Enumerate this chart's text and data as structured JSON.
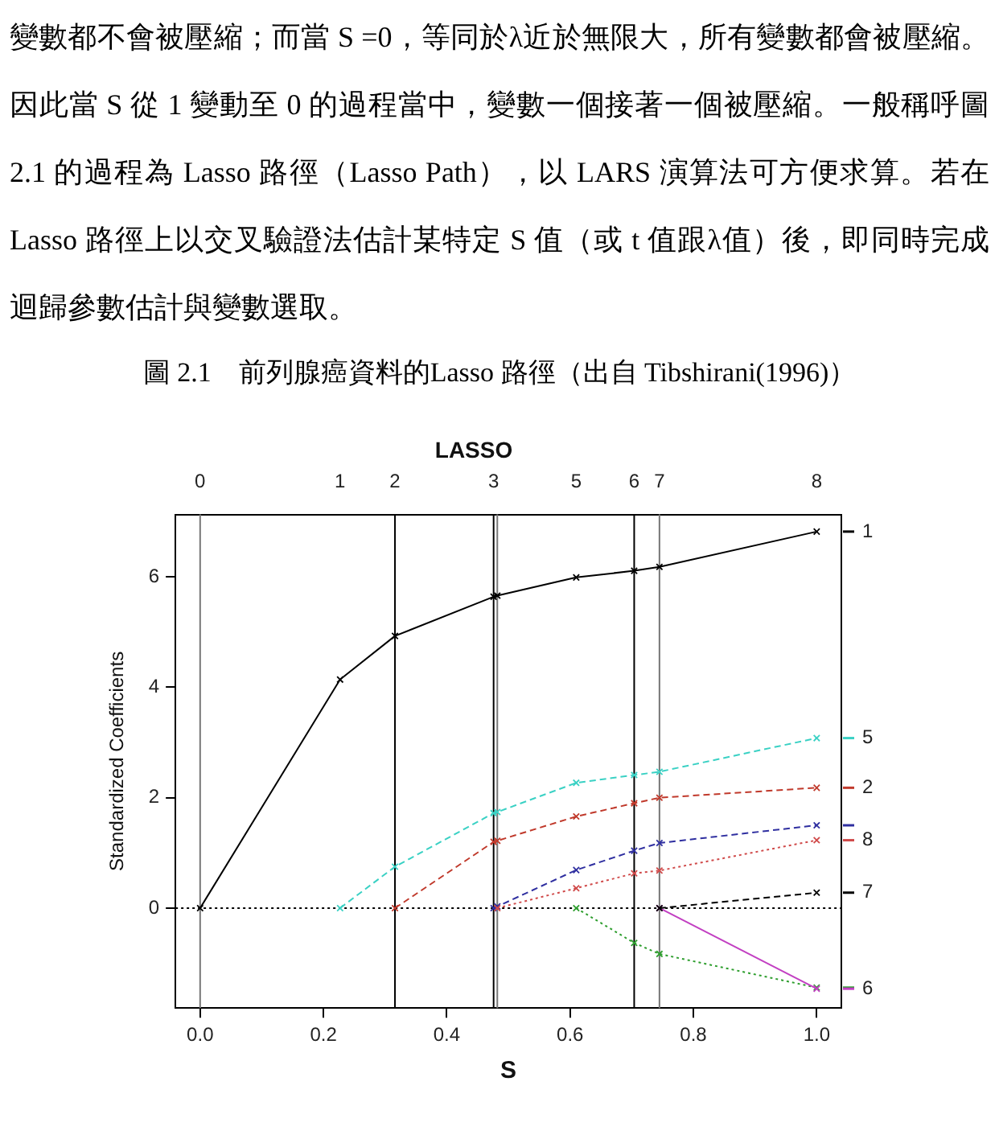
{
  "chart_data": {
    "type": "line",
    "title": "LASSO",
    "xlabel": "S",
    "ylabel": "Standardized Coefficients",
    "annotations": [
      "變數都不會被壓縮；而當 S =0，等同於λ近於無限大，所有變數都會被壓縮。因此當 S 從 1 變動至 0 的過程當中，變數一個接著一個被壓縮。一般稱呼圖 2.1 的過程為 Lasso 路徑（Lasso Path），以 LARS 演算法可方便求算。若在 Lasso 路徑上以交叉驗證法估計某特定 S 值（或 t 值跟λ值）後，即同時完成迴歸參數估計與變數選取。",
      "圖 2.1　前列腺癌資料的Lasso 路徑（出自 Tibshirani(1996)）",
      "0",
      "1",
      "2",
      "3",
      "5",
      "6",
      "7",
      "8"
    ],
    "x": [
      0,
      0.227,
      0.316,
      0.476,
      0.482,
      0.61,
      0.704,
      0.745,
      1.0
    ],
    "series": [
      {
        "name": "1",
        "color": "#000000",
        "line_style": "solid",
        "values": [
          0,
          4.14,
          4.93,
          5.64,
          5.66,
          5.99,
          6.11,
          6.18,
          6.82
        ]
      },
      {
        "name": "2",
        "color": "#c0392b",
        "line_style": "dashed",
        "values": [
          null,
          null,
          0,
          1.2,
          1.22,
          1.66,
          1.9,
          2.0,
          2.18
        ]
      },
      {
        "color": "#2e9e2e",
        "line_style": "dotted",
        "values": [
          null,
          null,
          null,
          null,
          null,
          0,
          -0.63,
          -0.83,
          -1.44
        ]
      },
      {
        "color": "#2f2fa0",
        "line_style": "dashed",
        "values": [
          null,
          null,
          null,
          0,
          0.03,
          0.69,
          1.04,
          1.18,
          1.5
        ]
      },
      {
        "name": "5",
        "color": "#3ad1c4",
        "line_style": "dashed",
        "values": [
          null,
          0,
          0.75,
          1.72,
          1.74,
          2.27,
          2.41,
          2.47,
          3.08
        ]
      },
      {
        "name": "6",
        "color": "#c23fc2",
        "line_style": "solid",
        "values": [
          null,
          null,
          null,
          null,
          null,
          null,
          null,
          0,
          -1.46
        ]
      },
      {
        "name": "7",
        "color": "#000000",
        "line_style": "dashed",
        "values": [
          null,
          null,
          null,
          null,
          null,
          null,
          null,
          0,
          0.28
        ]
      },
      {
        "name": "8",
        "color": "#d04a4a",
        "line_style": "dotted",
        "values": [
          null,
          null,
          null,
          null,
          0,
          0.36,
          0.63,
          0.68,
          1.23
        ]
      }
    ],
    "xlim": [
      -0.04,
      1.04
    ],
    "xticks": [
      {
        "value": 0,
        "label": "0.0"
      },
      0.2,
      0.4,
      0.6,
      0.8,
      {
        "value": 1,
        "label": "1.0"
      }
    ],
    "ylim": [
      -1.81,
      7.13
    ],
    "yticks": [
      0,
      2,
      4,
      6
    ],
    "ref_lines": [
      {
        "axis": "x",
        "value": 0,
        "color": "#777777"
      },
      {
        "axis": "x",
        "value": 0.316,
        "color": "#000000"
      },
      {
        "axis": "x",
        "value": 0.476,
        "color": "#000000"
      },
      {
        "axis": "x",
        "value": 0.482,
        "color": "#777777"
      },
      {
        "axis": "x",
        "value": 0.704,
        "color": "#000000"
      },
      {
        "axis": "x",
        "value": 0.745,
        "color": "#777777"
      },
      {
        "axis": "y",
        "value": 0,
        "color": "#000000",
        "line_style": "dotted"
      }
    ],
    "legend": "right",
    "marker": "cross"
  }
}
